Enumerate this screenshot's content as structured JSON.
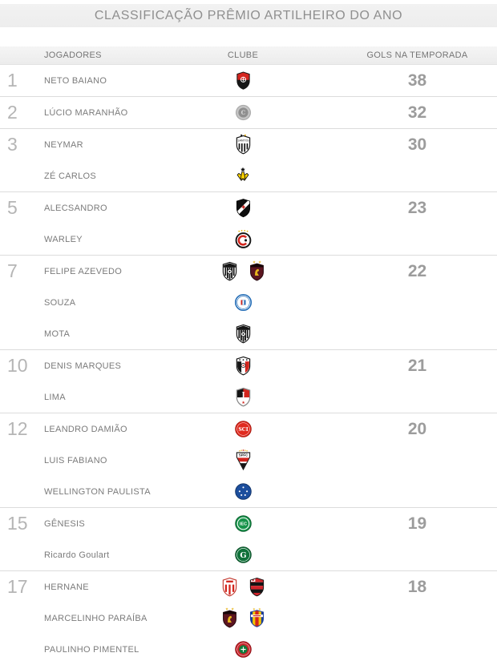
{
  "title": "CLASSIFICAÇÃO PRÊMIO ARTILHEIRO DO ANO",
  "columns": {
    "players": "JOGADORES",
    "club": "CLUBE",
    "goals": "GOLS NA TEMPORADA"
  },
  "colors": {
    "title_bar_bg": "#f0f0f0",
    "header_bg": "#f1f1f1",
    "separator": "#dcdcdc",
    "title_text": "#8f8f8f",
    "name_text": "#7b7b7b",
    "rank_text": "#b5b5b5",
    "goals_text": "#9c9c9c"
  },
  "groups": [
    {
      "rank": "1",
      "goals": "38",
      "players": [
        {
          "name": "NETO BAIANO",
          "crests": [
            "vitoria"
          ]
        }
      ]
    },
    {
      "rank": "2",
      "goals": "32",
      "players": [
        {
          "name": "LÚCIO MARANHÃO",
          "crests": [
            "gray-circle"
          ]
        }
      ]
    },
    {
      "rank": "3",
      "goals": "30",
      "players": [
        {
          "name": "NEYMAR",
          "crests": [
            "santos"
          ]
        },
        {
          "name": "ZÉ CARLOS",
          "crests": [
            "criciuma"
          ]
        }
      ]
    },
    {
      "rank": "5",
      "goals": "23",
      "players": [
        {
          "name": "ALECSANDRO",
          "crests": [
            "vasco"
          ]
        },
        {
          "name": "WARLEY",
          "crests": [
            "atletico-go"
          ]
        }
      ]
    },
    {
      "rank": "7",
      "goals": "22",
      "players": [
        {
          "name": "FELIPE AZEVEDO",
          "crests": [
            "ceara",
            "sport"
          ]
        },
        {
          "name": "SOUZA",
          "crests": [
            "bahia"
          ]
        },
        {
          "name": "MOTA",
          "crests": [
            "ceara"
          ]
        }
      ]
    },
    {
      "rank": "10",
      "goals": "21",
      "players": [
        {
          "name": "DENIS MARQUES",
          "crests": [
            "santa-cruz"
          ]
        },
        {
          "name": "LIMA",
          "crests": [
            "joinville"
          ]
        }
      ]
    },
    {
      "rank": "12",
      "goals": "20",
      "players": [
        {
          "name": "LEANDRO DAMIÃO",
          "crests": [
            "internacional"
          ]
        },
        {
          "name": "LUIS FABIANO",
          "crests": [
            "sao-paulo"
          ]
        },
        {
          "name": "WELLINGTON PAULISTA",
          "crests": [
            "cruzeiro"
          ]
        }
      ]
    },
    {
      "rank": "15",
      "goals": "19",
      "players": [
        {
          "name": "GÊNESIS",
          "crests": [
            "icasa"
          ]
        },
        {
          "name": "Ricardo Goulart",
          "crests": [
            "goias"
          ]
        }
      ]
    },
    {
      "rank": "17",
      "goals": "18",
      "players": [
        {
          "name": "HERNANE",
          "crests": [
            "nautico",
            "flamengo"
          ]
        },
        {
          "name": "MARCELINHO PARAÍBA",
          "crests": [
            "sport",
            "tricolor"
          ]
        },
        {
          "name": "PAULINHO PIMENTEL",
          "crests": [
            "portuguesa"
          ]
        }
      ]
    }
  ]
}
